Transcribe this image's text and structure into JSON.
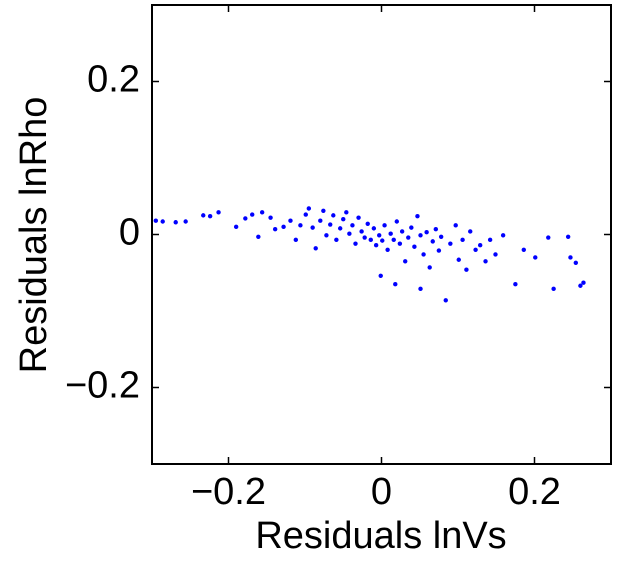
{
  "chart_data": {
    "type": "scatter",
    "x_label": "Residuals lnVs",
    "y_label": "Residuals lnRho",
    "xlim": [
      -0.3,
      0.3
    ],
    "ylim": [
      -0.3,
      0.3
    ],
    "xticks": [
      {
        "value": -0.2,
        "label": "−0.2"
      },
      0,
      0.2
    ],
    "yticks": [
      {
        "value": -0.2,
        "label": "−0.2"
      },
      0,
      0.2
    ],
    "series": [
      {
        "color": "#0000ff",
        "x": [
          -0.295,
          -0.286,
          -0.269,
          -0.256,
          -0.233,
          -0.224,
          -0.213,
          -0.19,
          -0.178,
          -0.169,
          -0.156,
          -0.161,
          -0.145,
          -0.139,
          -0.128,
          -0.119,
          -0.112,
          -0.106,
          -0.099,
          -0.095,
          -0.09,
          -0.086,
          -0.08,
          -0.076,
          -0.072,
          -0.067,
          -0.063,
          -0.059,
          -0.054,
          -0.05,
          -0.046,
          -0.042,
          -0.038,
          -0.034,
          -0.03,
          -0.026,
          -0.022,
          -0.018,
          -0.014,
          -0.01,
          -0.007,
          -0.003,
          0.001,
          0.004,
          0.008,
          0.012,
          0.016,
          0.02,
          0.024,
          0.027,
          0.031,
          0.035,
          0.039,
          0.043,
          0.047,
          0.051,
          0.055,
          0.059,
          0.063,
          0.067,
          0.071,
          0.075,
          0.078,
          0.084,
          0.09,
          0.097,
          0.101,
          0.106,
          0.111,
          0.116,
          0.123,
          0.129,
          0.136,
          0.142,
          0.149,
          0.159,
          0.175,
          0.186,
          0.201,
          0.218,
          0.225,
          0.244,
          0.247,
          0.254,
          0.26,
          0.264,
          -0.001,
          0.018,
          0.051
        ],
        "y": [
          0.018,
          0.017,
          0.016,
          0.017,
          0.025,
          0.024,
          0.029,
          0.01,
          0.021,
          0.026,
          0.029,
          -0.003,
          0.022,
          0.007,
          0.01,
          0.018,
          -0.007,
          0.012,
          0.026,
          0.034,
          0.009,
          -0.018,
          0.018,
          0.031,
          -0.001,
          0.013,
          0.025,
          -0.007,
          0.008,
          0.02,
          0.029,
          0.001,
          0.012,
          -0.012,
          0.022,
          0.004,
          -0.004,
          0.014,
          -0.007,
          0.008,
          -0.014,
          -0.001,
          -0.008,
          0.012,
          -0.02,
          0.001,
          -0.007,
          0.017,
          -0.012,
          0.004,
          -0.035,
          -0.004,
          0.009,
          -0.016,
          0.024,
          -0.001,
          -0.026,
          0.003,
          -0.043,
          -0.009,
          0.007,
          -0.021,
          -0.003,
          -0.086,
          -0.012,
          0.012,
          -0.033,
          -0.007,
          -0.046,
          0.004,
          -0.02,
          -0.014,
          -0.035,
          -0.007,
          -0.026,
          -0.001,
          -0.065,
          -0.02,
          -0.03,
          -0.004,
          -0.071,
          -0.003,
          -0.03,
          -0.037,
          -0.067,
          -0.063,
          -0.054,
          -0.065,
          -0.071
        ]
      }
    ]
  }
}
